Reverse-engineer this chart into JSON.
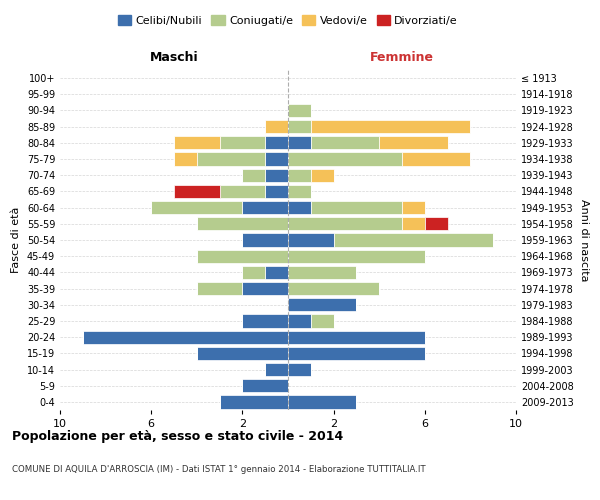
{
  "age_groups": [
    "0-4",
    "5-9",
    "10-14",
    "15-19",
    "20-24",
    "25-29",
    "30-34",
    "35-39",
    "40-44",
    "45-49",
    "50-54",
    "55-59",
    "60-64",
    "65-69",
    "70-74",
    "75-79",
    "80-84",
    "85-89",
    "90-94",
    "95-99",
    "100+"
  ],
  "birth_years": [
    "2009-2013",
    "2004-2008",
    "1999-2003",
    "1994-1998",
    "1989-1993",
    "1984-1988",
    "1979-1983",
    "1974-1978",
    "1969-1973",
    "1964-1968",
    "1959-1963",
    "1954-1958",
    "1949-1953",
    "1944-1948",
    "1939-1943",
    "1934-1938",
    "1929-1933",
    "1924-1928",
    "1919-1923",
    "1914-1918",
    "≤ 1913"
  ],
  "colors": {
    "celibi": "#3d6fad",
    "coniugati": "#b5cc8e",
    "vedovi": "#f5c158",
    "divorziati": "#cc2222"
  },
  "males": {
    "celibi": [
      3,
      2,
      1,
      4,
      9,
      2,
      0,
      2,
      1,
      0,
      2,
      0,
      2,
      1,
      1,
      1,
      1,
      0,
      0,
      0,
      0
    ],
    "coniugati": [
      0,
      0,
      0,
      0,
      0,
      0,
      0,
      2,
      1,
      4,
      0,
      4,
      4,
      2,
      1,
      3,
      2,
      0,
      0,
      0,
      0
    ],
    "vedovi": [
      0,
      0,
      0,
      0,
      0,
      0,
      0,
      0,
      0,
      0,
      0,
      0,
      0,
      0,
      0,
      1,
      2,
      1,
      0,
      0,
      0
    ],
    "divorziati": [
      0,
      0,
      0,
      0,
      0,
      0,
      0,
      0,
      0,
      0,
      0,
      0,
      0,
      2,
      0,
      0,
      0,
      0,
      0,
      0,
      0
    ]
  },
  "females": {
    "nubili": [
      3,
      0,
      1,
      6,
      6,
      1,
      3,
      0,
      0,
      0,
      2,
      0,
      1,
      0,
      0,
      0,
      1,
      0,
      0,
      0,
      0
    ],
    "coniugate": [
      0,
      0,
      0,
      0,
      0,
      1,
      0,
      4,
      3,
      6,
      7,
      5,
      4,
      1,
      1,
      5,
      3,
      1,
      1,
      0,
      0
    ],
    "vedove": [
      0,
      0,
      0,
      0,
      0,
      0,
      0,
      0,
      0,
      0,
      0,
      1,
      1,
      0,
      1,
      3,
      3,
      7,
      0,
      0,
      0
    ],
    "divorziate": [
      0,
      0,
      0,
      0,
      0,
      0,
      0,
      0,
      0,
      0,
      0,
      1,
      0,
      0,
      0,
      0,
      0,
      0,
      0,
      0,
      0
    ]
  },
  "xlim": 10,
  "title": "Popolazione per età, sesso e stato civile - 2014",
  "subtitle": "COMUNE DI AQUILA D'ARROSCIA (IM) - Dati ISTAT 1° gennaio 2014 - Elaborazione TUTTITALIA.IT",
  "ylabel_left": "Fasce di età",
  "ylabel_right": "Anni di nascita",
  "header_left": "Maschi",
  "header_right": "Femmine",
  "legend_labels": [
    "Celibi/Nubili",
    "Coniugati/e",
    "Vedovi/e",
    "Divorziati/e"
  ],
  "background_color": "#ffffff",
  "grid_color": "#cccccc"
}
